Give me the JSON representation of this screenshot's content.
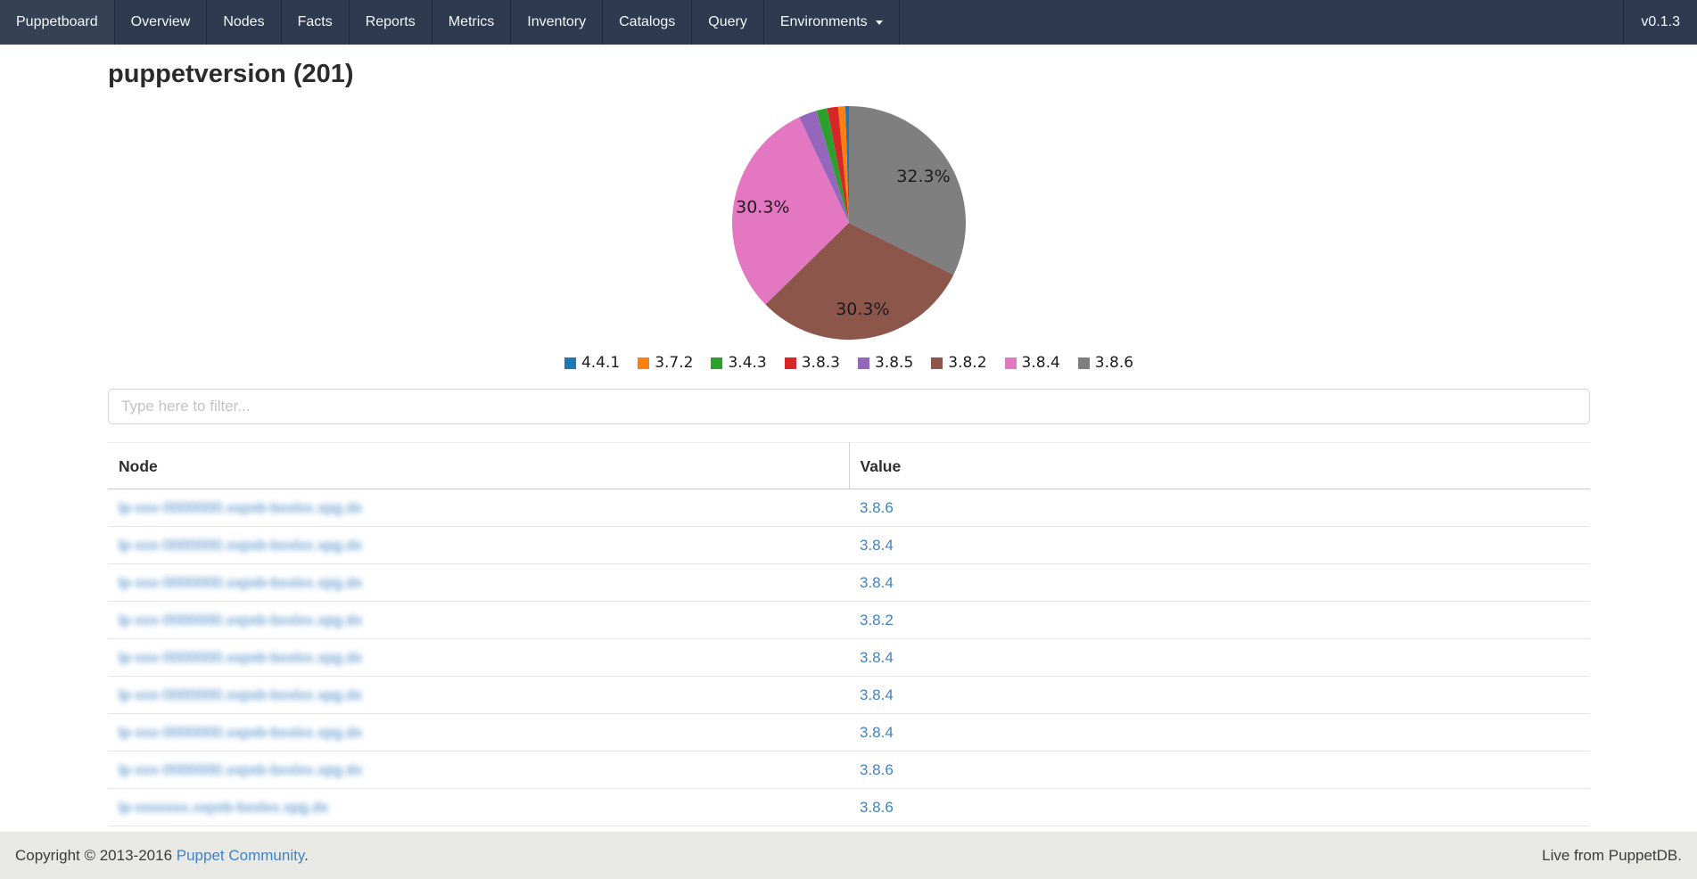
{
  "nav": {
    "brand": "Puppetboard",
    "items": [
      "Overview",
      "Nodes",
      "Facts",
      "Reports",
      "Metrics",
      "Inventory",
      "Catalogs",
      "Query"
    ],
    "dropdown_label": "Environments",
    "version": "v0.1.3"
  },
  "page": {
    "title": "puppetversion (201)"
  },
  "chart_data": {
    "type": "pie",
    "start_angle_deg": 90,
    "direction": "counterclockwise",
    "slices": [
      {
        "label": "4.4.1",
        "percent": 0.5,
        "color": "#1f77b4"
      },
      {
        "label": "3.7.2",
        "percent": 1.0,
        "color": "#ff7f0e"
      },
      {
        "label": "3.8.3",
        "percent": 1.5,
        "color": "#d62728"
      },
      {
        "label": "3.4.3",
        "percent": 1.5,
        "color": "#2ca02c"
      },
      {
        "label": "3.8.5",
        "percent": 2.5,
        "color": "#9467bd"
      },
      {
        "label": "3.8.4",
        "percent": 30.3,
        "color": "#e377c2"
      },
      {
        "label": "3.8.2",
        "percent": 30.3,
        "color": "#8c564b"
      },
      {
        "label": "3.8.6",
        "percent": 32.3,
        "color": "#7f7f7f"
      }
    ],
    "visible_percent_labels": [
      "30.3%",
      "30.3%",
      "32.3%"
    ],
    "min_percent_for_label": 3,
    "legend_position": "bottom-center",
    "legend": [
      {
        "label": "4.4.1",
        "color": "#1f77b4"
      },
      {
        "label": "3.7.2",
        "color": "#ff7f0e"
      },
      {
        "label": "3.4.3",
        "color": "#2ca02c"
      },
      {
        "label": "3.8.3",
        "color": "#d62728"
      },
      {
        "label": "3.8.5",
        "color": "#9467bd"
      },
      {
        "label": "3.8.2",
        "color": "#8c564b"
      },
      {
        "label": "3.8.4",
        "color": "#e377c2"
      },
      {
        "label": "3.8.6",
        "color": "#7f7f7f"
      }
    ]
  },
  "filter": {
    "placeholder": "Type here to filter..."
  },
  "table": {
    "columns": [
      "Node",
      "Value"
    ],
    "rows": [
      {
        "node_redacted": "lp-xxx-0000000.xxpxb-bxxlxx.xpg.dx",
        "value": "3.8.6"
      },
      {
        "node_redacted": "lp-xxx-0000000.xxpxb-bxxlxx.xpg.dx",
        "value": "3.8.4"
      },
      {
        "node_redacted": "lp-xxx-0000000.xxpxb-bxxlxx.xpg.dx",
        "value": "3.8.4"
      },
      {
        "node_redacted": "lp-xxx-0000000.xxpxb-bxxlxx.xpg.dx",
        "value": "3.8.2"
      },
      {
        "node_redacted": "lp-xxx-0000000.xxpxb-bxxlxx.xpg.dx",
        "value": "3.8.4"
      },
      {
        "node_redacted": "lp-xxx-0000000.xxpxb-bxxlxx.xpg.dx",
        "value": "3.8.4"
      },
      {
        "node_redacted": "lp-xxx-0000000.xxpxb-bxxlxx.xpg.dx",
        "value": "3.8.4"
      },
      {
        "node_redacted": "lp-xxx-0000000.xxpxb-bxxlxx.xpg.dx",
        "value": "3.8.6"
      },
      {
        "node_redacted": "lp-xxxxxxx.xxpxb-bxxlxx.xpg.dx",
        "value": "3.8.6"
      }
    ]
  },
  "footer": {
    "copyright_prefix": "Copyright © 2013-2016 ",
    "copyright_link": "Puppet Community",
    "copyright_suffix": ".",
    "right_text": "Live from PuppetDB."
  },
  "colors": {
    "nav_bg": "#2d3a4f",
    "link": "#4183c4",
    "footer_bg": "#e8e9e5"
  }
}
